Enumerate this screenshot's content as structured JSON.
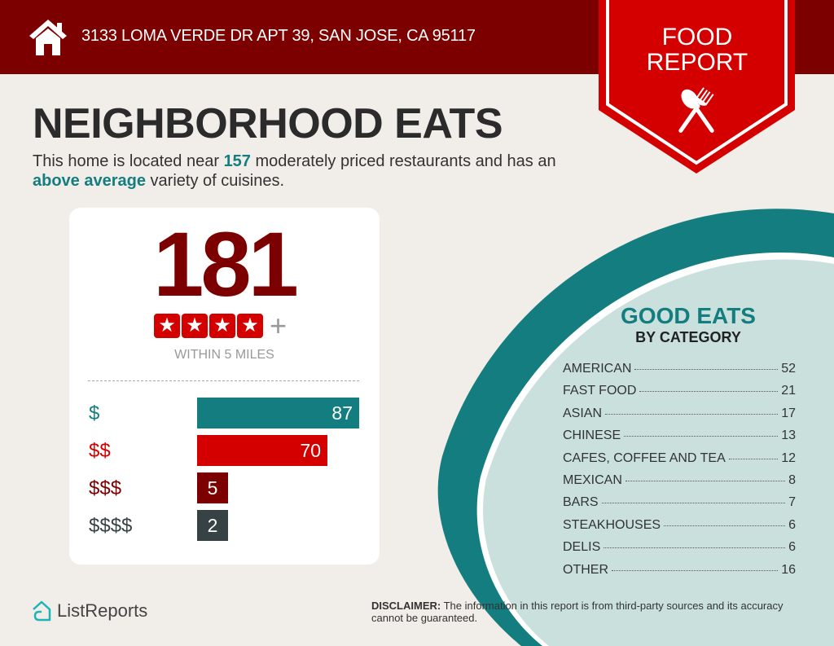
{
  "header": {
    "address": "3133 LOMA VERDE DR APT 39, SAN JOSE, CA 95117",
    "icon": "home-icon"
  },
  "badge": {
    "line1": "FOOD",
    "line2": "REPORT",
    "icon": "spoon-fork-icon"
  },
  "title": "NEIGHBORHOOD EATS",
  "subtitle": {
    "p1": "This home is located near ",
    "count": "157",
    "p2": " moderately priced restaurants and has an ",
    "variety": "above average",
    "p3": " variety of cuisines."
  },
  "card": {
    "total": "181",
    "stars": 4,
    "plus": "+",
    "within": "WITHIN 5 MILES",
    "price_levels": [
      {
        "label": "$",
        "value": 87,
        "color": "#137d80"
      },
      {
        "label": "$$",
        "value": 70,
        "color": "#d40000"
      },
      {
        "label": "$$$",
        "value": 5,
        "color": "#7d0000"
      },
      {
        "label": "$$$$",
        "value": 2,
        "color": "#374244"
      }
    ]
  },
  "good_eats": {
    "title": "GOOD EATS",
    "subtitle": "BY CATEGORY",
    "categories": [
      {
        "name": "AMERICAN",
        "count": "52"
      },
      {
        "name": "FAST FOOD",
        "count": "21"
      },
      {
        "name": "ASIAN",
        "count": "17"
      },
      {
        "name": "CHINESE",
        "count": "13"
      },
      {
        "name": "CAFES, COFFEE AND TEA",
        "count": "12"
      },
      {
        "name": "MEXICAN",
        "count": "8"
      },
      {
        "name": "BARS",
        "count": "7"
      },
      {
        "name": "STEAKHOUSES",
        "count": "6"
      },
      {
        "name": "DELIS",
        "count": "6"
      },
      {
        "name": "OTHER",
        "count": "16"
      }
    ]
  },
  "footer": {
    "logo": "ListReports",
    "disclaimer_label": "DISCLAIMER:",
    "disclaimer_text": " The information in this report is from third-party sources and its accuracy cannot be guaranteed."
  },
  "colors": {
    "header": "#7d0000",
    "badge": "#d40000",
    "teal": "#137d80",
    "teal_light": "#c9e0dd",
    "background": "#f1ede8"
  }
}
